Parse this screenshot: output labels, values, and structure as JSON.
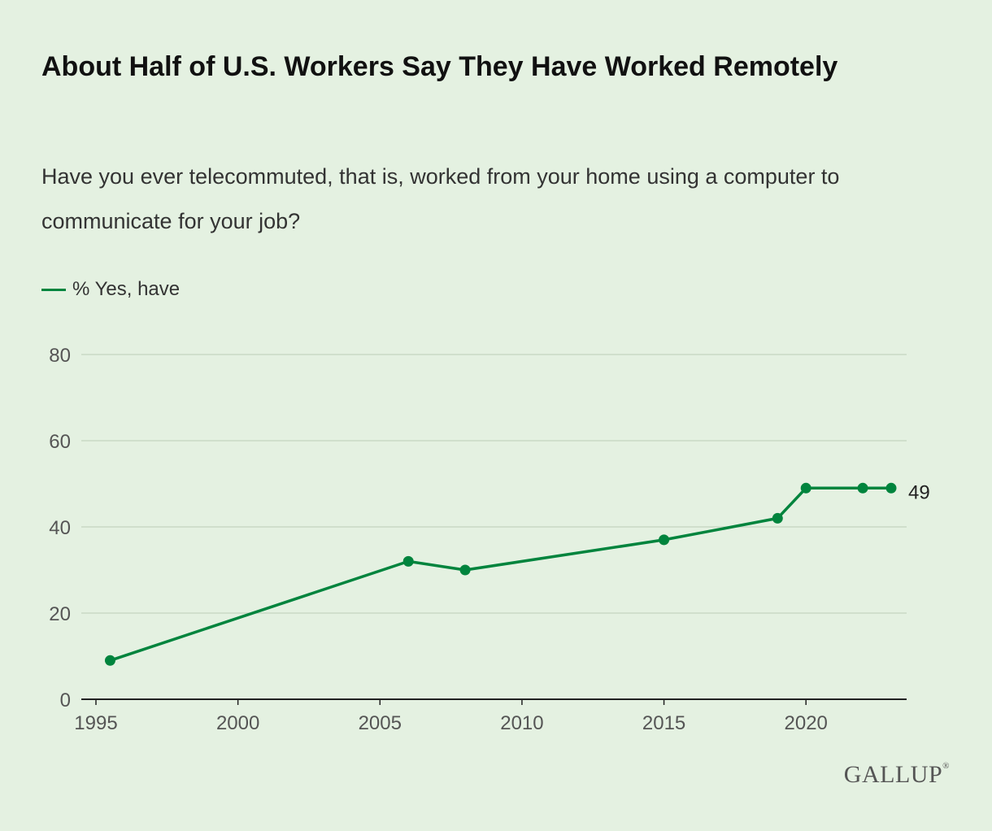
{
  "header": {
    "title": "About Half of U.S. Workers Say They Have Worked Remotely",
    "subtitle": "Have you ever telecommuted, that is, worked from your home using a computer to communicate for your job?"
  },
  "legend": {
    "label": "% Yes, have"
  },
  "logo": {
    "text": "GALLUP",
    "mark": "®"
  },
  "colors": {
    "series": "#00843d",
    "grid": "#c9d9c6",
    "axis": "#222222",
    "tick": "#555555",
    "background": "#e4f1e1"
  },
  "chart_data": {
    "type": "line",
    "title": "About Half of U.S. Workers Say They Have Worked Remotely",
    "subtitle": "Have you ever telecommuted, that is, worked from your home using a computer to communicate for your job?",
    "xlabel": "",
    "ylabel": "",
    "xlim": [
      1995,
      2024
    ],
    "ylim": [
      0,
      80
    ],
    "x_ticks": [
      1995,
      2000,
      2005,
      2010,
      2015,
      2020
    ],
    "y_ticks": [
      0,
      20,
      40,
      60,
      80
    ],
    "grid": "horizontal",
    "legend": "top-left",
    "series": [
      {
        "name": "% Yes, have",
        "x": [
          1995.5,
          2006,
          2008,
          2015,
          2019,
          2020,
          2022,
          2023
        ],
        "values": [
          9,
          32,
          30,
          37,
          42,
          49,
          49,
          49
        ],
        "end_label": "49"
      }
    ]
  }
}
